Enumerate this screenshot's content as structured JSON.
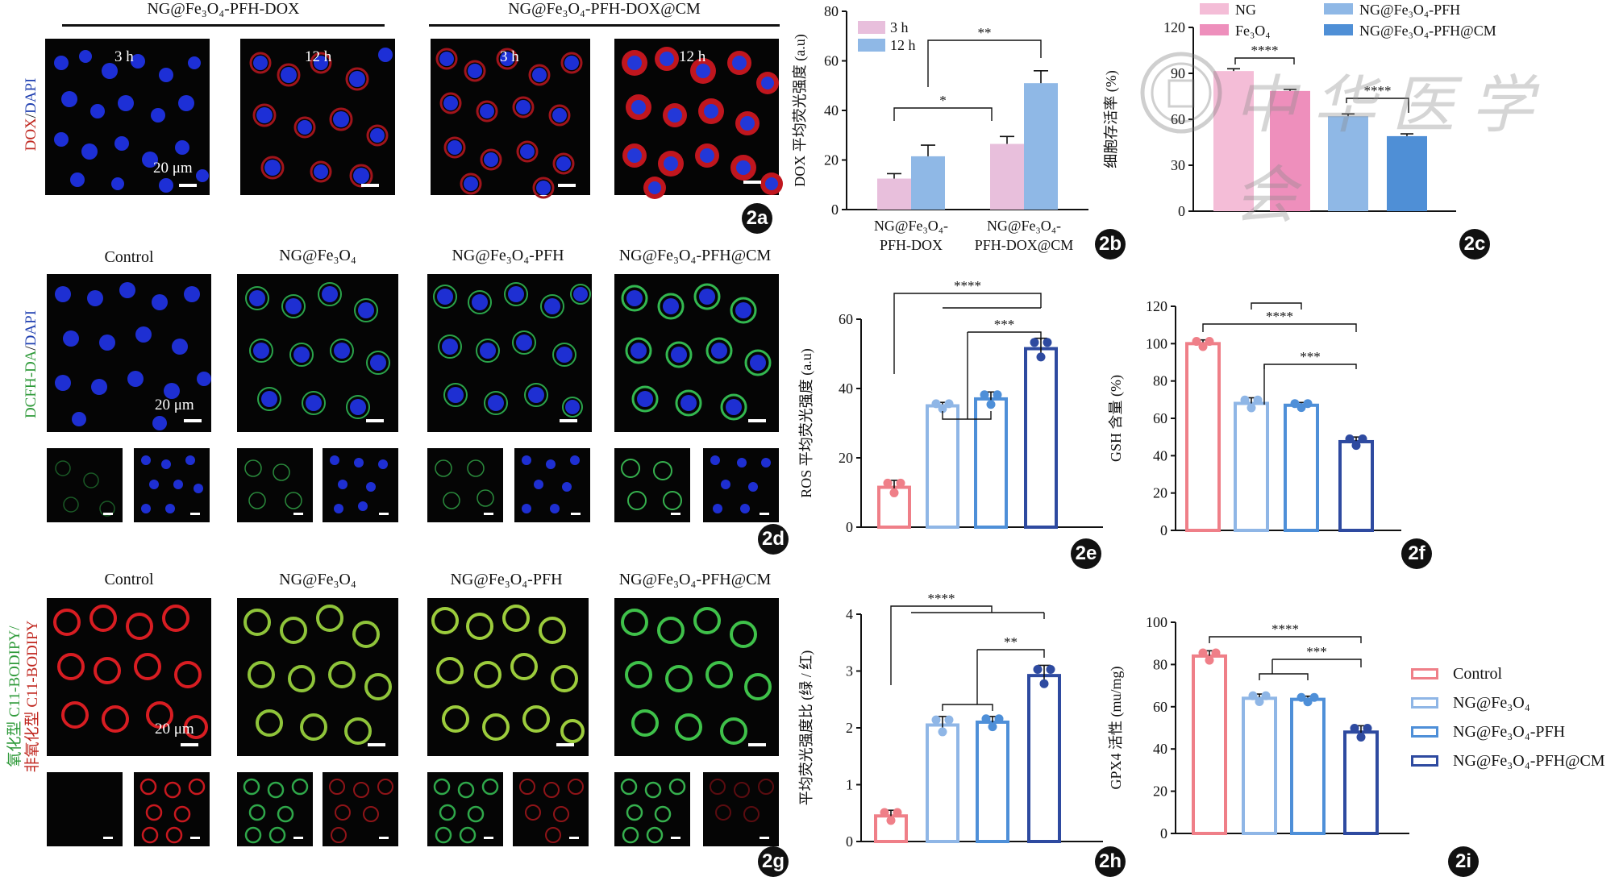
{
  "panel_labels": {
    "a": "2a",
    "b": "2b",
    "c": "2c",
    "d": "2d",
    "e": "2e",
    "f": "2f",
    "g": "2g",
    "h": "2h",
    "i": "2i"
  },
  "row_a": {
    "group1_title": "NG@Fe₃O₄-PFH-DOX",
    "group2_title": "NG@Fe₃O₄-PFH-DOX@CM",
    "ylabel_red": "DOX",
    "ylabel_sep": "/",
    "ylabel_blue": "DAPI",
    "time_labels": [
      "3 h",
      "12 h",
      "3 h",
      "12 h"
    ],
    "scale": "20 μm"
  },
  "row_d": {
    "ylabel_green": "DCFH-DA",
    "ylabel_sep": "/",
    "ylabel_blue": "DAPI",
    "columns": [
      "Control",
      "NG@Fe₃O₄",
      "NG@Fe₃O₄-PFH",
      "NG@Fe₃O₄-PFH@CM"
    ],
    "scale": "20 μm"
  },
  "row_g": {
    "ylabel_green_1": "氧化型 C11-BODIPY/",
    "ylabel_red_2": "非氧化型 C11-BODIPY",
    "columns": [
      "Control",
      "NG@Fe₃O₄",
      "NG@Fe₃O₄-PFH",
      "NG@Fe₃O₄-PFH@CM"
    ],
    "scale": "20 μm"
  },
  "legend_bottom": {
    "items": [
      "Control",
      "NG@Fe₃O₄",
      "NG@Fe₃O₄-PFH",
      "NG@Fe₃O₄-PFH@CM"
    ],
    "colors": [
      "#ef7f88",
      "#8fb6e6",
      "#4e8fd8",
      "#2e4aa0"
    ]
  },
  "watermark": "中华医学会",
  "chart_data": [
    {
      "id": "2b",
      "type": "bar",
      "categories": [
        "NG@Fe₃O₄-PFH-DOX",
        "NG@Fe₃O₄-PFH-DOX@CM"
      ],
      "series": [
        {
          "name": "3 h",
          "values": [
            12.5,
            26.5
          ],
          "errors": [
            2,
            3
          ],
          "color": "#e8bfdc"
        },
        {
          "name": "12 h",
          "values": [
            21.5,
            51
          ],
          "errors": [
            4.5,
            5
          ],
          "color": "#8fb8e6"
        }
      ],
      "ylabel": "DOX 平均荧光强度 (a.u)",
      "ylim": [
        0,
        80
      ],
      "yticks": [
        0,
        20,
        40,
        60,
        80
      ],
      "significance": [
        "*",
        "**"
      ]
    },
    {
      "id": "2c",
      "type": "bar",
      "categories": [
        "NG",
        "Fe₃O₄",
        "NG@Fe₃O₄-PFH",
        "NG@Fe₃O₄-PFH@CM"
      ],
      "values": [
        91.5,
        78.5,
        62,
        49
      ],
      "errors": [
        1.5,
        1,
        1.5,
        1.5
      ],
      "colors": [
        "#f4bdd7",
        "#ee8fbc",
        "#8fb8e6",
        "#4f8fd6"
      ],
      "ylabel": "细胞存活率 (%)",
      "ylim": [
        0,
        120
      ],
      "yticks": [
        0,
        30,
        60,
        90,
        120
      ],
      "significance": [
        "****",
        "****"
      ]
    },
    {
      "id": "2e",
      "type": "bar",
      "categories": [
        "Control",
        "NG@Fe₃O₄",
        "NG@Fe₃O₄-PFH",
        "NG@Fe₃O₄-PFH@CM"
      ],
      "values": [
        11.5,
        35,
        37,
        51.5
      ],
      "errors": [
        2,
        1,
        2,
        3
      ],
      "ylabel": "ROS 平均荧光强度 (a.u)",
      "ylim": [
        0,
        60
      ],
      "yticks": [
        0,
        20,
        40,
        60
      ],
      "significance": [
        "****",
        "***"
      ]
    },
    {
      "id": "2f",
      "type": "bar",
      "categories": [
        "Control",
        "NG@Fe₃O₄",
        "NG@Fe₃O₄-PFH",
        "NG@Fe₃O₄-PFH@CM"
      ],
      "values": [
        100,
        68,
        67,
        47.5
      ],
      "errors": [
        2,
        3,
        1.5,
        2.5
      ],
      "ylabel": "GSH 含量 (%)",
      "ylim": [
        0,
        120
      ],
      "yticks": [
        0,
        20,
        40,
        60,
        80,
        100,
        120
      ],
      "significance": [
        "****",
        "***"
      ]
    },
    {
      "id": "2h",
      "type": "bar",
      "categories": [
        "Control",
        "NG@Fe₃O₄",
        "NG@Fe₃O₄-PFH",
        "NG@Fe₃O₄-PFH@CM"
      ],
      "values": [
        0.45,
        2.05,
        2.1,
        2.92
      ],
      "errors": [
        0.1,
        0.15,
        0.1,
        0.18
      ],
      "ylabel": "平均荧光强度比 (绿 / 红)",
      "ylim": [
        0,
        4
      ],
      "yticks": [
        0,
        1,
        2,
        3,
        4
      ],
      "significance": [
        "****",
        "**"
      ]
    },
    {
      "id": "2i",
      "type": "bar",
      "categories": [
        "Control",
        "NG@Fe₃O₄",
        "NG@Fe₃O₄-PFH",
        "NG@Fe₃O₄-PFH@CM"
      ],
      "values": [
        84,
        64,
        63.5,
        48
      ],
      "errors": [
        2.5,
        2,
        1.5,
        3
      ],
      "ylabel": "GPX4 活性 (mu/mg)",
      "ylim": [
        0,
        100
      ],
      "yticks": [
        0,
        20,
        40,
        60,
        80,
        100
      ],
      "significance": [
        "****",
        "***"
      ]
    }
  ]
}
